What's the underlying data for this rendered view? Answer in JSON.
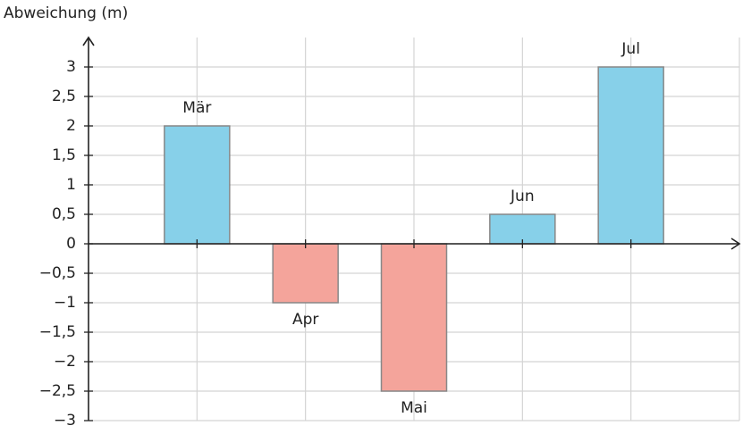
{
  "chart_data": {
    "type": "bar",
    "title": "Abweichung (m)",
    "categories": [
      "Mär",
      "Apr",
      "Mai",
      "Jun",
      "Jul"
    ],
    "values": [
      2,
      -1,
      -2.5,
      0.5,
      3
    ],
    "colors": [
      "#87d0e9",
      "#f4a49b",
      "#f4a49b",
      "#87d0e9",
      "#87d0e9"
    ],
    "ylim": [
      -3,
      3.5
    ],
    "yticks": [
      {
        "value": -3,
        "label": "−3"
      },
      {
        "value": -2.5,
        "label": "−2,5"
      },
      {
        "value": -2,
        "label": "−2"
      },
      {
        "value": -1.5,
        "label": "−1,5"
      },
      {
        "value": -1,
        "label": "−1"
      },
      {
        "value": -0.5,
        "label": "−0,5"
      },
      0,
      {
        "value": 0.5,
        "label": "0,5"
      },
      1,
      {
        "value": 1.5,
        "label": "1,5"
      },
      2,
      {
        "value": 2.5,
        "label": "2,5"
      },
      3
    ],
    "grid": true
  }
}
